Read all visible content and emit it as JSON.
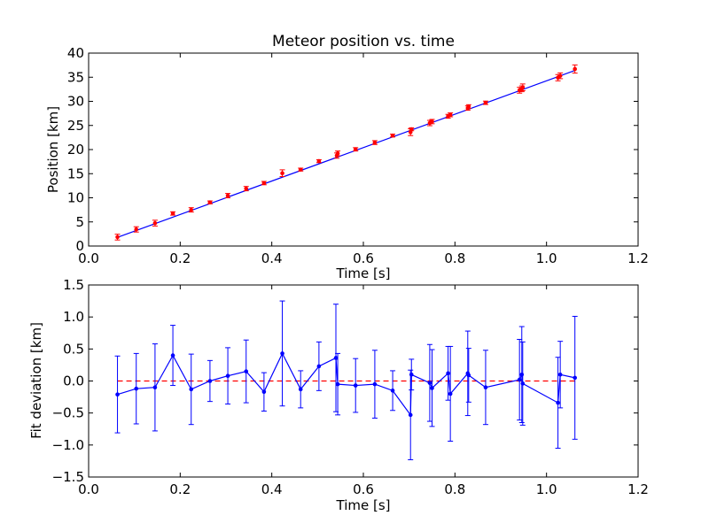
{
  "chart_data": [
    {
      "type": "scatter",
      "title": "Meteor position vs. time",
      "xlabel": "Time [s]",
      "ylabel": "Position [km]",
      "xlim": [
        0.0,
        1.2
      ],
      "ylim": [
        0,
        40
      ],
      "xticks": [
        "0.0",
        "0.2",
        "0.4",
        "0.6",
        "0.8",
        "1.0",
        "1.2"
      ],
      "yticks": [
        "0",
        "5",
        "10",
        "15",
        "20",
        "25",
        "30",
        "35",
        "40"
      ],
      "grid": false,
      "colors": {
        "points": "#ff0000",
        "errorbars": "#ff0000",
        "fit_line": "#0000ff"
      },
      "series": [
        {
          "x": [
            0.063,
            0.104,
            0.145,
            0.184,
            0.224,
            0.265,
            0.304,
            0.344,
            0.383,
            0.423,
            0.463,
            0.503,
            0.542,
            0.544,
            0.583,
            0.625,
            0.664,
            0.703,
            0.705,
            0.745,
            0.75,
            0.785,
            0.79,
            0.828,
            0.83,
            0.867,
            0.941,
            0.946,
            0.948,
            1.025,
            1.03,
            1.062
          ],
          "y": [
            1.85,
            3.45,
            4.75,
            6.75,
            7.5,
            9.05,
            10.45,
            11.9,
            13.05,
            15.1,
            15.85,
            17.6,
            18.75,
            19.2,
            20.05,
            21.45,
            22.9,
            23.6,
            24.2,
            25.5,
            25.8,
            26.9,
            27.2,
            28.6,
            28.9,
            29.7,
            32.3,
            32.6,
            32.9,
            34.9,
            35.3,
            36.7
          ],
          "yerr": [
            0.6,
            0.55,
            0.6,
            0.35,
            0.45,
            0.3,
            0.45,
            0.45,
            0.35,
            0.7,
            0.3,
            0.3,
            0.55,
            0.5,
            0.35,
            0.4,
            0.3,
            0.7,
            0.3,
            0.55,
            0.45,
            0.4,
            0.4,
            0.45,
            0.4,
            0.35,
            0.6,
            0.6,
            0.7,
            0.65,
            0.6,
            0.85
          ]
        }
      ],
      "fit_line": {
        "x": [
          0.063,
          1.062
        ],
        "y": [
          1.8,
          36.4
        ]
      }
    },
    {
      "type": "line",
      "xlabel": "Time [s]",
      "ylabel": "Fit deviation [km]",
      "xlim": [
        0.0,
        1.2
      ],
      "ylim": [
        -1.5,
        1.5
      ],
      "xticks": [
        "0.0",
        "0.2",
        "0.4",
        "0.6",
        "0.8",
        "1.0",
        "1.2"
      ],
      "yticks": [
        "−1.5",
        "−1.0",
        "−0.5",
        "0.0",
        "0.5",
        "1.0",
        "1.5"
      ],
      "grid": false,
      "colors": {
        "series": "#0000ff",
        "zero_line": "#ff0000"
      },
      "reference_line": {
        "y": 0.0,
        "style": "dashed"
      },
      "series": [
        {
          "x": [
            0.063,
            0.104,
            0.145,
            0.184,
            0.224,
            0.265,
            0.304,
            0.344,
            0.383,
            0.423,
            0.463,
            0.503,
            0.54,
            0.544,
            0.583,
            0.625,
            0.664,
            0.703,
            0.705,
            0.745,
            0.75,
            0.785,
            0.79,
            0.828,
            0.83,
            0.867,
            0.941,
            0.946,
            0.948,
            1.025,
            1.03,
            1.062
          ],
          "y": [
            -0.21,
            -0.12,
            -0.1,
            0.4,
            -0.13,
            0.0,
            0.08,
            0.15,
            -0.17,
            0.43,
            -0.13,
            0.23,
            0.36,
            -0.05,
            -0.07,
            -0.05,
            -0.15,
            -0.53,
            0.1,
            -0.03,
            -0.11,
            0.12,
            -0.2,
            0.12,
            0.09,
            -0.1,
            0.02,
            0.1,
            -0.04,
            -0.34,
            0.1,
            0.05
          ],
          "yerr": [
            0.6,
            0.55,
            0.68,
            0.47,
            0.55,
            0.32,
            0.44,
            0.49,
            0.3,
            0.82,
            0.29,
            0.38,
            0.84,
            0.48,
            0.42,
            0.53,
            0.31,
            0.7,
            0.24,
            0.6,
            0.6,
            0.42,
            0.74,
            0.66,
            0.42,
            0.58,
            0.63,
            0.75,
            0.65,
            0.71,
            0.52,
            0.96
          ]
        }
      ]
    }
  ]
}
